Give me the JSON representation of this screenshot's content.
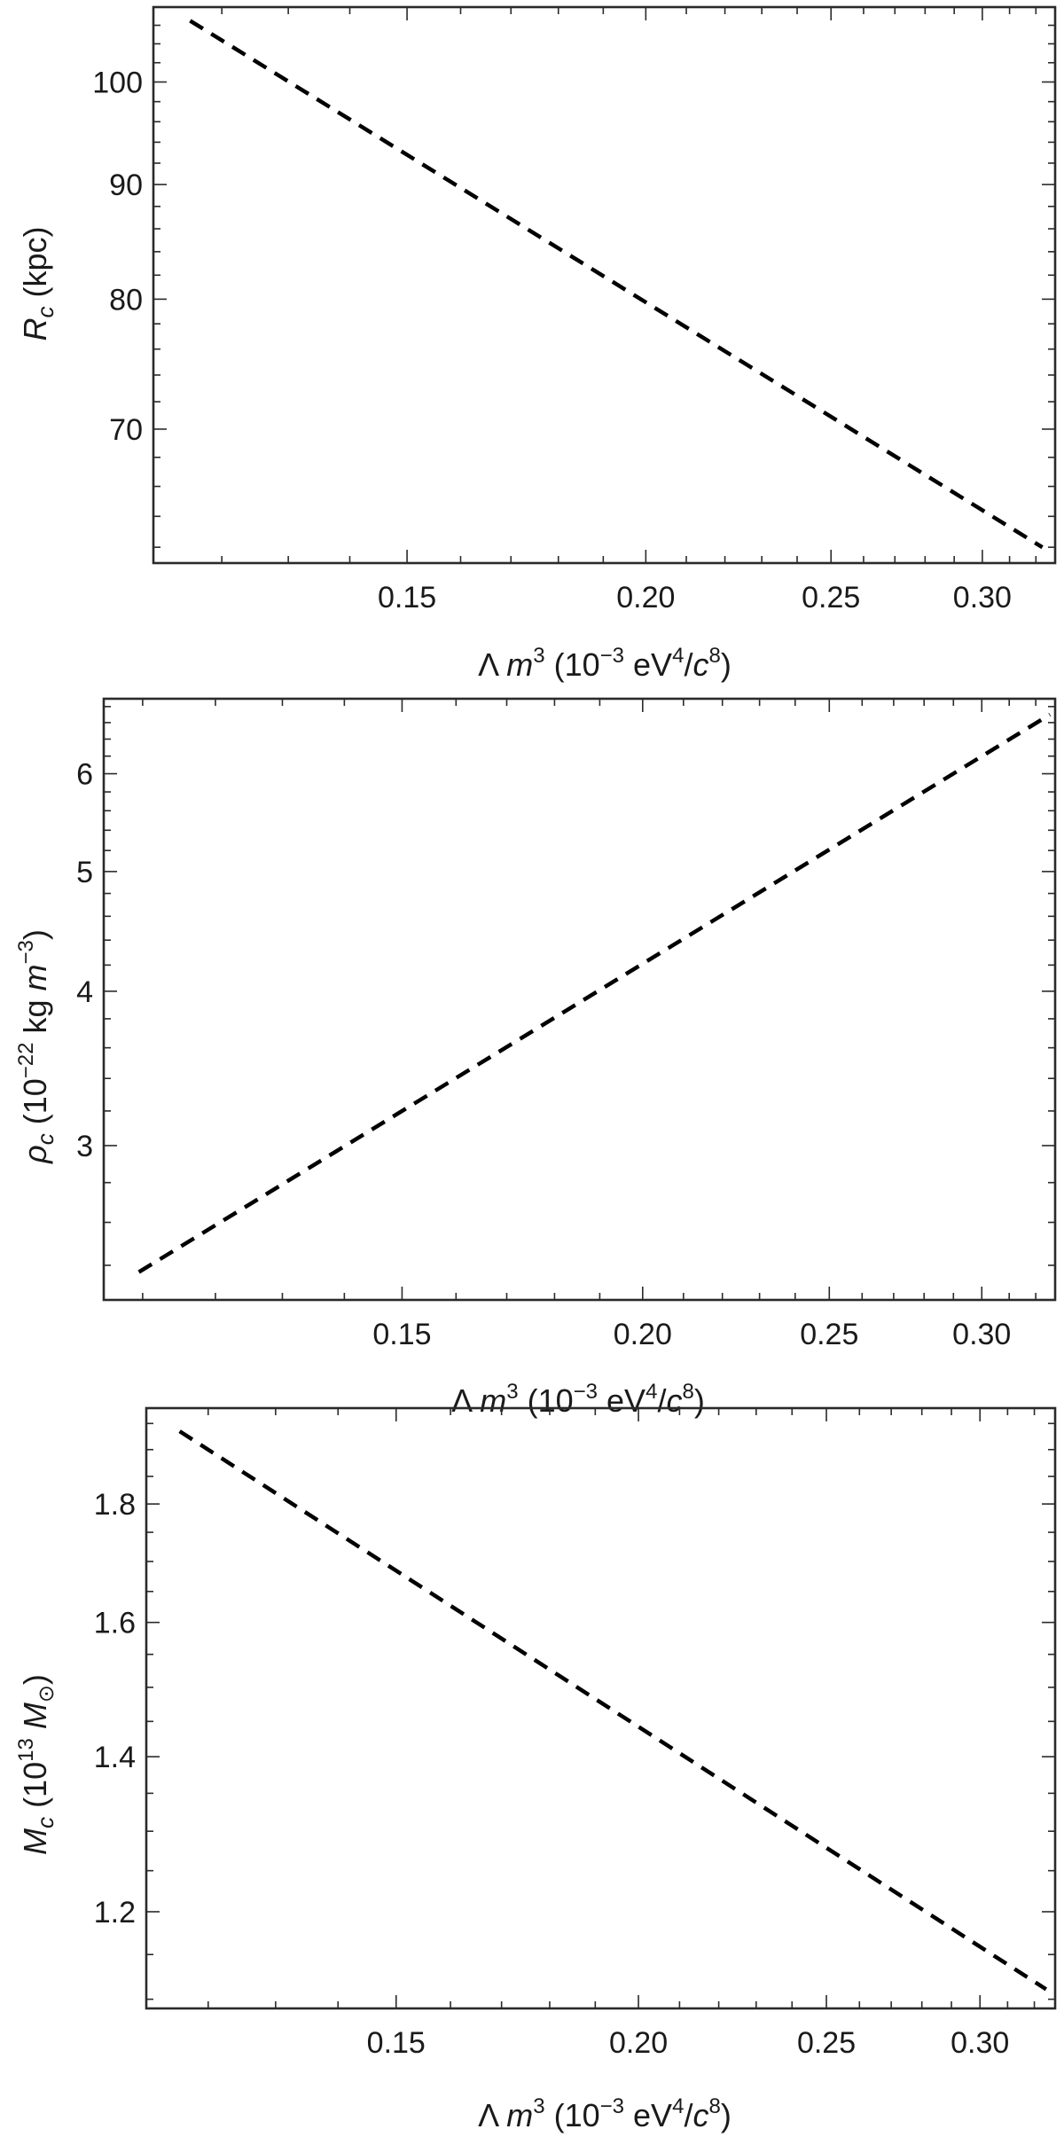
{
  "chart_data": [
    {
      "type": "line",
      "scale": {
        "x": "log",
        "y": "log"
      },
      "xlabel": {
        "base": "Λ",
        "var": "m",
        "exp": "3",
        "unit_open": " (10",
        "unit_exp": "−3",
        "unit_mid": " eV",
        "unit_exp2": "4",
        "unit_slash": "/",
        "unit_var": "c",
        "unit_exp3": "8",
        "unit_close": ")"
      },
      "ylabel": {
        "var": "R",
        "sub": "c",
        "unit": " (kpc)"
      },
      "xlim": [
        0.1105,
        0.3275
      ],
      "ylim": [
        61.0,
        108.0
      ],
      "xticks": [
        "0.15",
        "0.20",
        "0.25",
        "0.30"
      ],
      "yticks": [
        "70",
        "80",
        "90",
        "100"
      ],
      "series": [
        {
          "style": "dashed",
          "x": [
            0.1155,
            0.3225
          ],
          "y": [
            106.5,
            62.0
          ]
        }
      ]
    },
    {
      "type": "line",
      "scale": {
        "x": "log",
        "y": "log"
      },
      "xlabel": {
        "base": "Λ",
        "var": "m",
        "exp": "3",
        "unit_open": " (10",
        "unit_exp": "−3",
        "unit_mid": " eV",
        "unit_exp2": "4",
        "unit_slash": "/",
        "unit_var": "c",
        "unit_exp3": "8",
        "unit_close": ")"
      },
      "ylabel": {
        "var": "ρ",
        "sub": "c",
        "unit": " (10",
        "unit_exp": "−22",
        "unit_mid": " kg ",
        "unit_var": "m",
        "unit_exp2": "−3",
        "unit_close": ")"
      },
      "xlim": [
        0.105,
        0.3275
      ],
      "ylim": [
        2.25,
        6.9
      ],
      "xticks": [
        "0.15",
        "0.20",
        "0.25",
        "0.30"
      ],
      "yticks": [
        "3",
        "4",
        "5",
        "6"
      ],
      "series": [
        {
          "style": "dashed",
          "x": [
            0.1095,
            0.3255
          ],
          "y": [
            2.37,
            6.7
          ]
        }
      ]
    },
    {
      "type": "line",
      "scale": {
        "x": "log",
        "y": "log"
      },
      "xlabel": {
        "base": "Λ",
        "var": "m",
        "exp": "3",
        "unit_open": " (10",
        "unit_exp": "−3",
        "unit_mid": " eV",
        "unit_exp2": "4",
        "unit_slash": "/",
        "unit_var": "c",
        "unit_exp3": "8",
        "unit_close": ")"
      },
      "ylabel": {
        "var": "M",
        "sub": "c",
        "unit": " (10",
        "unit_exp": "13",
        "unit_mid": " ",
        "unit_var": "M",
        "unit_sub": "⊙",
        "unit_close": ")"
      },
      "xlim": [
        0.1115,
        0.328
      ],
      "ylim": [
        1.09,
        1.98
      ],
      "xticks": [
        "0.15",
        "0.20",
        "0.25",
        "0.30"
      ],
      "yticks": [
        "1.2",
        "1.4",
        "1.6",
        "1.8"
      ],
      "series": [
        {
          "style": "dashed",
          "x": [
            0.116,
            0.3245
          ],
          "y": [
            1.935,
            1.111
          ]
        }
      ]
    }
  ]
}
